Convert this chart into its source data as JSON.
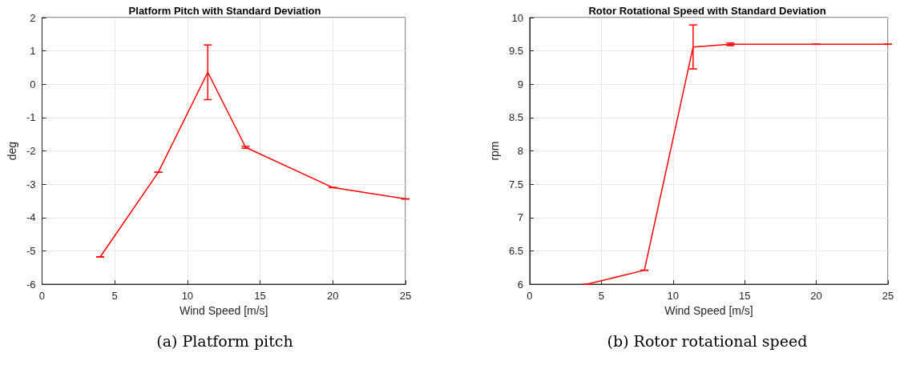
{
  "chart_data": [
    {
      "type": "line",
      "title": "Platform Pitch with Standard Deviation",
      "xlabel": "Wind Speed [m/s]",
      "ylabel": "deg",
      "x": [
        4,
        8,
        11.4,
        14,
        20,
        25
      ],
      "series": [
        {
          "color": "#ff0000",
          "values": [
            -5.18,
            -2.64,
            0.36,
            -1.89,
            -3.1,
            -3.44
          ],
          "errors": [
            0,
            0,
            0.82,
            0.03,
            0,
            0
          ]
        }
      ],
      "xlim": [
        0,
        25
      ],
      "xticks": [
        0,
        5,
        10,
        15,
        20,
        25
      ],
      "ylim": [
        -6,
        2
      ],
      "yticks": [
        -6,
        -5,
        -4,
        -3,
        -2,
        -1,
        0,
        1,
        2
      ],
      "grid": true,
      "marker": "none",
      "line_style": "solid",
      "annotations": [
        "(a) Platform pitch"
      ]
    },
    {
      "type": "line",
      "title": "Rotor Rotational Speed with Standard Deviation",
      "xlabel": "Wind Speed [m/s]",
      "ylabel": "rpm",
      "x": [
        4,
        8,
        11.4,
        14,
        20,
        25
      ],
      "series": [
        {
          "color": "#ff0000",
          "values": [
            6.0,
            6.21,
            9.56,
            9.6,
            9.6,
            9.6
          ],
          "errors": [
            0,
            0,
            0.33,
            0.02,
            0,
            0
          ]
        }
      ],
      "xlim": [
        0,
        25
      ],
      "xticks": [
        0,
        5,
        10,
        15,
        20,
        25
      ],
      "ylim": [
        6,
        10
      ],
      "yticks": [
        6,
        6.5,
        7,
        7.5,
        8,
        8.5,
        9,
        9.5,
        10
      ],
      "grid": true,
      "marker": "none",
      "line_style": "solid",
      "annotations": [
        "(b) Rotor rotational speed"
      ]
    }
  ]
}
